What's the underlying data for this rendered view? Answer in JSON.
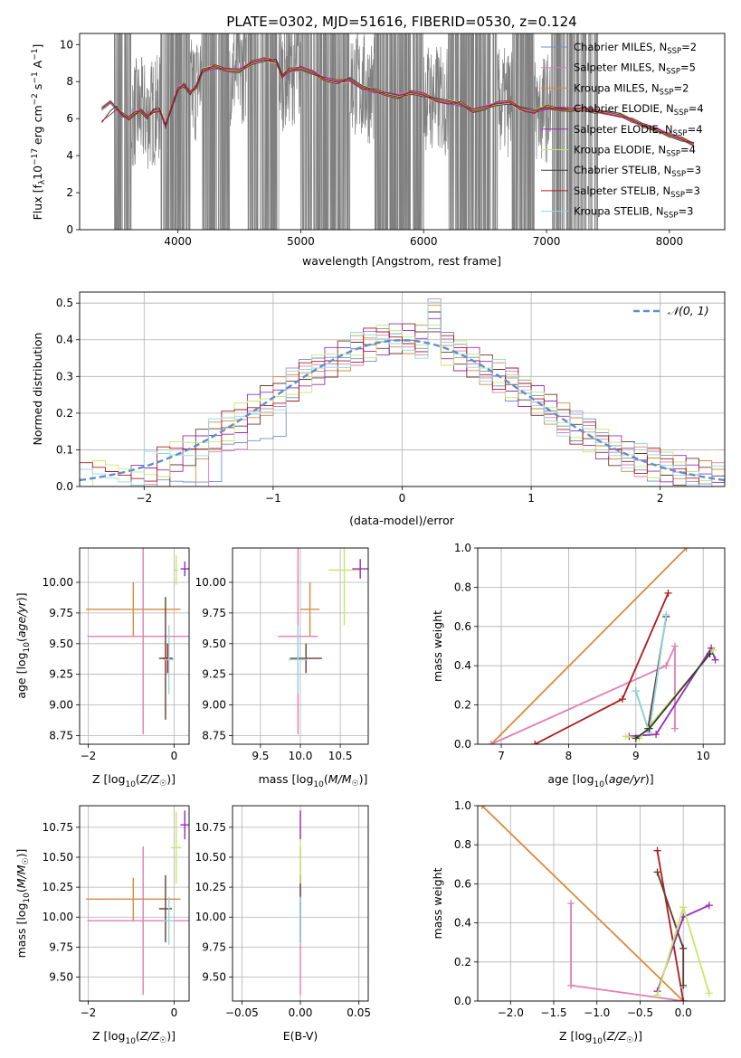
{
  "title": "PLATE=0302, MJD=51616, FIBERID=0530, z=0.124",
  "colors": {
    "Chabrier MILES": "#6b8fd8",
    "Salpeter MILES": "#e07fb2",
    "Kroupa MILES": "#d98a3d",
    "Chabrier ELODIE": "#6b3a2a",
    "Salpeter ELODIE": "#9a2bb5",
    "Kroupa ELODIE": "#c4e86a",
    "Chabrier STELIB": "#3a3a3a",
    "Salpeter STELIB": "#b01a1a",
    "Kroupa STELIB": "#8fd8e8",
    "data": "#808080",
    "gaussian": "#5b8fd0"
  },
  "chart_data": [
    {
      "type": "line",
      "title": "PLATE=0302, MJD=51616, FIBERID=0530, z=0.124",
      "xlabel": "wavelength [Angstrom, rest frame]",
      "ylabel": "Flux [f_λ 10^-17 erg cm^-2 s^-1 A^-1]",
      "xlim": [
        3200,
        8450
      ],
      "ylim": [
        0,
        10.6
      ],
      "xticks": [
        "4000",
        "5000",
        "6000",
        "7000",
        "8000"
      ],
      "yticks": [
        "0",
        "2",
        "4",
        "6",
        "8",
        "10"
      ],
      "legend_position": "right",
      "legend": [
        {
          "label": "Chabrier MILES, N_SSP=2",
          "base": "Chabrier MILES, N",
          "sub": "SSP",
          "tail": "=2"
        },
        {
          "label": "Salpeter MILES, N_SSP=5",
          "base": "Salpeter MILES, N",
          "sub": "SSP",
          "tail": "=5"
        },
        {
          "label": "Kroupa MILES, N_SSP=2",
          "base": "Kroupa MILES, N",
          "sub": "SSP",
          "tail": "=2"
        },
        {
          "label": "Chabrier ELODIE, N_SSP=4",
          "base": "Chabrier ELODIE, N",
          "sub": "SSP",
          "tail": "=4"
        },
        {
          "label": "Salpeter ELODIE, N_SSP=4",
          "base": "Salpeter ELODIE, N",
          "sub": "SSP",
          "tail": "=4"
        },
        {
          "label": "Kroupa ELODIE, N_SSP=4",
          "base": "Kroupa ELODIE, N",
          "sub": "SSP",
          "tail": "=4"
        },
        {
          "label": "Chabrier STELIB, N_SSP=3",
          "base": "Chabrier STELIB, N",
          "sub": "SSP",
          "tail": "=3"
        },
        {
          "label": "Salpeter STELIB, N_SSP=3",
          "base": "Salpeter STELIB, N",
          "sub": "SSP",
          "tail": "=3"
        },
        {
          "label": "Kroupa STELIB, N_SSP=3",
          "base": "Kroupa STELIB, N",
          "sub": "SSP",
          "tail": "=3"
        }
      ],
      "model_continuum": {
        "x": [
          3380,
          3450,
          3500,
          3550,
          3600,
          3650,
          3700,
          3750,
          3800,
          3850,
          3900,
          3950,
          4000,
          4050,
          4100,
          4150,
          4200,
          4300,
          4400,
          4500,
          4600,
          4700,
          4800,
          4850,
          4900,
          5000,
          5100,
          5200,
          5300,
          5400,
          5500,
          5600,
          5700,
          5800,
          5900,
          6000,
          6100,
          6200,
          6300,
          6400,
          6500,
          6600,
          6700,
          6800,
          6900,
          7000,
          7100,
          7200,
          7300,
          7400,
          7500,
          7600,
          7700,
          7800,
          7900,
          8000,
          8100,
          8200
        ],
        "y": [
          6.5,
          6.9,
          6.6,
          6.2,
          6.0,
          6.3,
          6.4,
          6.1,
          6.4,
          6.5,
          5.6,
          6.6,
          7.6,
          7.8,
          7.4,
          7.7,
          8.6,
          8.8,
          8.6,
          8.6,
          9.0,
          9.2,
          9.1,
          8.3,
          8.6,
          8.7,
          8.5,
          8.1,
          8.0,
          8.1,
          7.7,
          7.5,
          7.3,
          7.2,
          7.4,
          7.3,
          7.0,
          6.9,
          6.8,
          6.4,
          6.6,
          6.8,
          6.9,
          6.5,
          6.4,
          6.6,
          6.5,
          6.5,
          6.5,
          6.4,
          6.3,
          6.2,
          5.9,
          5.6,
          5.4,
          5.1,
          4.9,
          4.6
        ]
      },
      "data_noise": {
        "x_range": [
          3480,
          7420
        ],
        "fill_ranges": [
          [
            3480,
            3620
          ],
          [
            3860,
            4100
          ],
          [
            4200,
            4420
          ],
          [
            4560,
            4820
          ],
          [
            5000,
            5400
          ],
          [
            5600,
            6000
          ],
          [
            6200,
            6600
          ],
          [
            6720,
            6900
          ],
          [
            7040,
            7420
          ]
        ]
      }
    },
    {
      "type": "line",
      "xlabel": "(data-model)/error",
      "ylabel": "Normed distribution",
      "xlim": [
        -2.5,
        2.5
      ],
      "ylim": [
        0,
        0.53
      ],
      "xticks": [
        "−2",
        "−1",
        "0",
        "1",
        "2"
      ],
      "yticks": [
        "0.0",
        "0.1",
        "0.2",
        "0.3",
        "0.4",
        "0.5"
      ],
      "legend_position": "top-right",
      "legend": [
        {
          "label": "𝒩(0, 1)"
        }
      ],
      "grid": true,
      "bin_width": 0.1,
      "gaussian": {
        "mean": 0,
        "std": 1
      }
    },
    {
      "type": "scatter",
      "xlabel": "Z [log10(Z/Z☉)]",
      "ylabel": "age [log10(age/yr)]",
      "xlim": [
        -2.2,
        0.35
      ],
      "ylim": [
        8.68,
        10.28
      ],
      "xticks": [
        "−2",
        "0"
      ],
      "yticks": [
        "8.75",
        "9.00",
        "9.25",
        "9.50",
        "9.75",
        "10.00"
      ],
      "grid": true,
      "points": [
        {
          "series": "Kroupa MILES",
          "x": -0.95,
          "y": 9.78,
          "xerr": 1.1,
          "yerr": 0.22
        },
        {
          "series": "Salpeter MILES",
          "x": -0.72,
          "y": 9.56,
          "xerr": 1.3,
          "yerr": 0.8
        },
        {
          "series": "Chabrier ELODIE",
          "x": -0.2,
          "y": 9.38,
          "xerr": 0.15,
          "yerr": 0.5
        },
        {
          "series": "Salpeter STELIB",
          "x": -0.15,
          "y": 9.38,
          "xerr": 0.12,
          "yerr": 0.12
        },
        {
          "series": "Kroupa STELIB",
          "x": -0.12,
          "y": 9.37,
          "xerr": 0.12,
          "yerr": 0.28
        },
        {
          "series": "Kroupa ELODIE",
          "x": 0.05,
          "y": 10.1,
          "xerr": 0.05,
          "yerr": 0.12
        },
        {
          "series": "Salpeter ELODIE",
          "x": 0.25,
          "y": 10.11,
          "xerr": 0.1,
          "yerr": 0.06
        }
      ]
    },
    {
      "type": "scatter",
      "xlabel": "mass [log10(M/M☉)]",
      "ylabel": "",
      "xlim": [
        9.15,
        10.85
      ],
      "ylim": [
        8.68,
        10.28
      ],
      "xticks": [
        "9.5",
        "10.0",
        "10.5"
      ],
      "yticks": [
        "8.75",
        "9.00",
        "9.25",
        "9.50",
        "9.75",
        "10.00"
      ],
      "grid": true,
      "points": [
        {
          "series": "Kroupa MILES",
          "x": 10.12,
          "y": 9.78,
          "xerr": 0.12,
          "yerr": 0.22
        },
        {
          "series": "Salpeter MILES",
          "x": 9.97,
          "y": 9.56,
          "xerr": 0.25,
          "yerr": 0.8
        },
        {
          "series": "Chabrier ELODIE",
          "x": 10.07,
          "y": 9.38,
          "xerr": 0.2,
          "yerr": 0.12
        },
        {
          "series": "Kroupa STELIB",
          "x": 9.97,
          "y": 9.37,
          "xerr": 0.12,
          "yerr": 0.28
        },
        {
          "series": "Kroupa ELODIE",
          "x": 10.55,
          "y": 10.1,
          "xerr": 0.2,
          "yerr": 0.45
        },
        {
          "series": "Salpeter ELODIE",
          "x": 10.75,
          "y": 10.11,
          "xerr": 0.1,
          "yerr": 0.08
        }
      ]
    },
    {
      "type": "line",
      "xlabel": "age log10(age/yr)",
      "ylabel": "mass weight",
      "xlim": [
        6.65,
        10.32
      ],
      "ylim": [
        0,
        1.0
      ],
      "xticks": [
        "7",
        "8",
        "9",
        "10"
      ],
      "yticks": [
        "0.0",
        "0.2",
        "0.4",
        "0.6",
        "0.8",
        "1.0"
      ],
      "grid": true,
      "series": [
        {
          "name": "Kroupa MILES",
          "x": [
            6.85,
            9.75
          ],
          "y": [
            0.0,
            1.0
          ]
        },
        {
          "name": "Salpeter MILES",
          "x": [
            6.85,
            9.45,
            9.58,
            9.58
          ],
          "y": [
            0.0,
            0.4,
            0.5,
            0.08
          ]
        },
        {
          "name": "Salpeter STELIB",
          "x": [
            7.5,
            8.8,
            9.48
          ],
          "y": [
            0.0,
            0.23,
            0.77
          ]
        },
        {
          "name": "Chabrier ELODIE",
          "x": [
            9.0,
            9.18,
            9.45
          ],
          "y": [
            0.27,
            0.08,
            0.65
          ]
        },
        {
          "name": "Kroupa STELIB",
          "x": [
            9.0,
            9.2,
            9.45
          ],
          "y": [
            0.27,
            0.06,
            0.66
          ]
        },
        {
          "name": "Salpeter ELODIE",
          "x": [
            8.9,
            9.3,
            10.12,
            10.18
          ],
          "y": [
            0.04,
            0.05,
            0.49,
            0.43
          ]
        },
        {
          "name": "Kroupa ELODIE",
          "x": [
            8.85,
            9.05,
            10.15
          ],
          "y": [
            0.04,
            0.03,
            0.48
          ]
        },
        {
          "name": "Chabrier STELIB",
          "x": [
            9.0,
            9.2,
            10.1
          ],
          "y": [
            0.03,
            0.08,
            0.46
          ]
        }
      ]
    },
    {
      "type": "scatter",
      "xlabel": "Z [log10(Z/Z☉)]",
      "ylabel": "mass [log10(M/M☉)]",
      "xlim": [
        -2.2,
        0.35
      ],
      "ylim": [
        9.3,
        10.93
      ],
      "xticks": [
        "−2",
        "0"
      ],
      "yticks": [
        "9.50",
        "9.75",
        "10.00",
        "10.25",
        "10.50",
        "10.75"
      ],
      "grid": true,
      "points": [
        {
          "series": "Kroupa MILES",
          "x": -0.95,
          "y": 10.15,
          "xerr": 1.1,
          "yerr": 0.18
        },
        {
          "series": "Salpeter MILES",
          "x": -0.72,
          "y": 9.97,
          "xerr": 1.3,
          "yerr": 0.62
        },
        {
          "series": "Chabrier ELODIE",
          "x": -0.2,
          "y": 10.07,
          "xerr": 0.15,
          "yerr": 0.28
        },
        {
          "series": "Kroupa STELIB",
          "x": -0.12,
          "y": 9.97,
          "xerr": 0.12,
          "yerr": 0.2
        },
        {
          "series": "Kroupa ELODIE",
          "x": 0.05,
          "y": 10.58,
          "xerr": 0.12,
          "yerr": 0.3
        },
        {
          "series": "Salpeter ELODIE",
          "x": 0.25,
          "y": 10.77,
          "xerr": 0.1,
          "yerr": 0.12
        }
      ]
    },
    {
      "type": "scatter",
      "xlabel": "E(B-V)",
      "ylabel": "",
      "xlim": [
        -0.058,
        0.058
      ],
      "ylim": [
        9.3,
        10.93
      ],
      "xticks": [
        "−0.05",
        "0.00",
        "0.05"
      ],
      "yticks": [
        "9.50",
        "9.75",
        "10.00",
        "10.25",
        "10.50",
        "10.75"
      ],
      "grid": true,
      "points": [
        {
          "series": "Salpeter MILES",
          "x": 0.0,
          "y": 9.97,
          "xerr": 0,
          "yerr": 0.62
        },
        {
          "series": "Chabrier ELODIE",
          "x": 0.0,
          "y": 10.07,
          "xerr": 0,
          "yerr": 0.28
        },
        {
          "series": "Kroupa ELODIE",
          "x": 0.0,
          "y": 10.58,
          "xerr": 0,
          "yerr": 0.3
        },
        {
          "series": "Salpeter ELODIE",
          "x": 0.0,
          "y": 10.77,
          "xerr": 0,
          "yerr": 0.12
        },
        {
          "series": "Kroupa STELIB",
          "x": 0.0,
          "y": 9.97,
          "xerr": 0,
          "yerr": 0.2
        }
      ]
    },
    {
      "type": "line",
      "xlabel": "Z [log10(Z/Z☉)]",
      "ylabel": "mass weight",
      "xlim": [
        -2.38,
        0.48
      ],
      "ylim": [
        0,
        1.0
      ],
      "xticks": [
        "−2.0",
        "−1.5",
        "−1.0",
        "−0.5",
        "0.0"
      ],
      "yticks": [
        "0.0",
        "0.2",
        "0.4",
        "0.6",
        "0.8",
        "1.0"
      ],
      "grid": true,
      "series": [
        {
          "name": "Kroupa MILES",
          "x": [
            -2.33,
            0.0
          ],
          "y": [
            1.0,
            0.0
          ]
        },
        {
          "name": "Salpeter MILES",
          "x": [
            -1.3,
            -1.3,
            0.0
          ],
          "y": [
            0.5,
            0.08,
            0.0
          ]
        },
        {
          "name": "Salpeter STELIB",
          "x": [
            -0.3,
            0.0
          ],
          "y": [
            0.77,
            0.0
          ]
        },
        {
          "name": "Kroupa STELIB",
          "x": [
            -0.3,
            0.0,
            0.0
          ],
          "y": [
            0.66,
            0.27,
            0.07
          ]
        },
        {
          "name": "Chabrier ELODIE",
          "x": [
            -0.3,
            0.0,
            0.0
          ],
          "y": [
            0.66,
            0.27,
            0.08
          ]
        },
        {
          "name": "Salpeter ELODIE",
          "x": [
            -0.3,
            0.0,
            0.3
          ],
          "y": [
            0.05,
            0.43,
            0.49
          ]
        },
        {
          "name": "Kroupa ELODIE",
          "x": [
            -0.3,
            0.0,
            0.3
          ],
          "y": [
            0.03,
            0.48,
            0.04
          ]
        }
      ]
    }
  ]
}
